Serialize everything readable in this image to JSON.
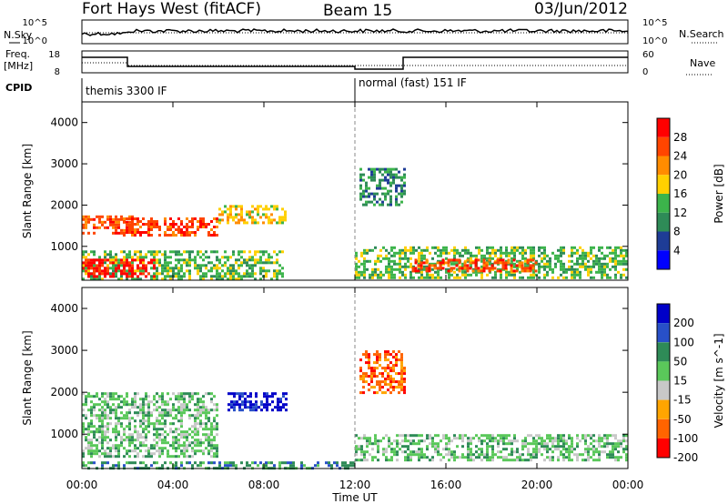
{
  "header": {
    "title": "Fort Hays West (fitACF)",
    "beam": "Beam 15",
    "date": "03/Jun/2012"
  },
  "panels": {
    "nsky": {
      "label": "N.Sky",
      "ticks": [
        "10^5",
        "10^0"
      ]
    },
    "nsearch": {
      "label": "N.Search",
      "ticks": [
        "10^5",
        "10^0"
      ]
    },
    "freq": {
      "label_line1": "Freq.",
      "label_line2": "[MHz]",
      "ticks": [
        "18",
        "8"
      ]
    },
    "nave": {
      "label": "Nave",
      "ticks": [
        "60",
        "0"
      ]
    },
    "cpid": {
      "label": "CPID",
      "segments": [
        "themis 3300 IF",
        "normal (fast) 151 IF"
      ]
    }
  },
  "chart_data": [
    {
      "type": "heatmap",
      "name": "power",
      "ylabel": "Slant Range [km]",
      "xlabel": "Time UT",
      "xlim": [
        0,
        24
      ],
      "ylim": [
        180,
        4500
      ],
      "x_ticks": [
        "00:00",
        "04:00",
        "08:00",
        "12:00",
        "16:00",
        "20:00",
        "00:00"
      ],
      "y_ticks": [
        1000,
        2000,
        3000,
        4000
      ],
      "colorbar": {
        "label": "Power [dB]",
        "ticks": [
          "28",
          "24",
          "20",
          "16",
          "12",
          "8",
          "4"
        ],
        "colors": [
          "#ff0000",
          "#ff4500",
          "#ff8c00",
          "#ffd000",
          "#3cb44b",
          "#2e8b57",
          "#1e3c96",
          "#0000ff"
        ]
      },
      "regions": [
        {
          "t0": 0.0,
          "t1": 8.8,
          "r0": 180,
          "r1": 900,
          "level": 3
        },
        {
          "t0": 0.0,
          "t1": 3.2,
          "r0": 300,
          "r1": 700,
          "level": 7
        },
        {
          "t0": 0.0,
          "t1": 2.2,
          "r0": 1350,
          "r1": 1750,
          "level": 6
        },
        {
          "t0": 1.8,
          "t1": 6.0,
          "r0": 1250,
          "r1": 1700,
          "level": 6
        },
        {
          "t0": 6.0,
          "t1": 9.0,
          "r0": 1600,
          "r1": 2000,
          "level": 4
        },
        {
          "t0": 12.0,
          "t1": 24.0,
          "r0": 250,
          "r1": 1000,
          "level": 3
        },
        {
          "t0": 14.5,
          "t1": 20.0,
          "r0": 400,
          "r1": 700,
          "level": 6
        },
        {
          "t0": 12.2,
          "t1": 14.2,
          "r0": 2000,
          "r1": 2900,
          "level": 2
        }
      ]
    },
    {
      "type": "heatmap",
      "name": "velocity",
      "ylabel": "Slant Range [km]",
      "xlabel": "Time UT",
      "xlim": [
        0,
        24
      ],
      "ylim": [
        180,
        4500
      ],
      "x_ticks": [
        "00:00",
        "04:00",
        "08:00",
        "12:00",
        "16:00",
        "20:00",
        "00:00"
      ],
      "y_ticks": [
        1000,
        2000,
        3000,
        4000
      ],
      "colorbar": {
        "label": "Velocity [m s^-1]",
        "ticks": [
          "200",
          "100",
          "50",
          "15",
          "-15",
          "-50",
          "-100",
          "-200"
        ],
        "colors": [
          "#0000c8",
          "#2850c8",
          "#2e8b57",
          "#5ac85a",
          "#c8c8c8",
          "#ffa500",
          "#ff6400",
          "#ff0000"
        ]
      },
      "regions": [
        {
          "t0": 0.0,
          "t1": 6.0,
          "r0": 500,
          "r1": 2000,
          "level": 4
        },
        {
          "t0": 6.4,
          "t1": 9.0,
          "r0": 1550,
          "r1": 2000,
          "level": 7
        },
        {
          "t0": 12.0,
          "t1": 24.0,
          "r0": 400,
          "r1": 1000,
          "level": 4
        },
        {
          "t0": 0.0,
          "t1": 12.0,
          "r0": 180,
          "r1": 350,
          "level": 5
        },
        {
          "t0": 12.2,
          "t1": 14.2,
          "r0": 2000,
          "r1": 3000,
          "level": 1
        }
      ]
    }
  ]
}
